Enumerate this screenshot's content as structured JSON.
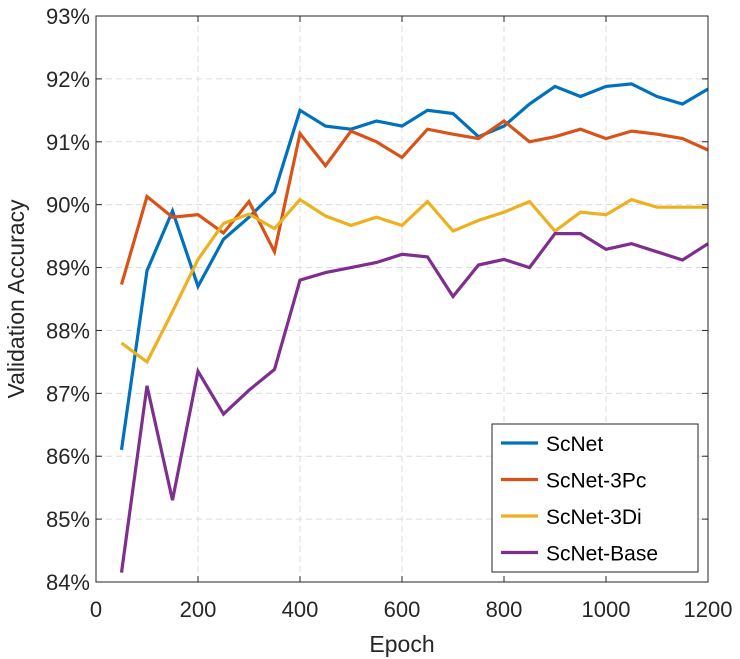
{
  "chart_data": {
    "type": "line",
    "title": "",
    "xlabel": "Epoch",
    "ylabel": "Validation Accuracy",
    "xlim": [
      0,
      1200
    ],
    "ylim": [
      84,
      93
    ],
    "xticks": [
      0,
      200,
      400,
      600,
      800,
      1000,
      1200
    ],
    "xtick_labels": [
      "0",
      "200",
      "400",
      "600",
      "800",
      "1000",
      "1200"
    ],
    "yticks": [
      84,
      85,
      86,
      87,
      88,
      89,
      90,
      91,
      92,
      93
    ],
    "ytick_labels": [
      "84%",
      "85%",
      "86%",
      "87%",
      "88%",
      "89%",
      "90%",
      "91%",
      "92%",
      "93%"
    ],
    "grid": true,
    "legend_position": "bottom-right",
    "x": [
      50,
      100,
      150,
      200,
      250,
      300,
      350,
      400,
      450,
      500,
      550,
      600,
      650,
      700,
      750,
      800,
      850,
      900,
      950,
      1000,
      1050,
      1100,
      1150,
      1200
    ],
    "series": [
      {
        "name": "ScNet",
        "color": "#0072BD",
        "values": [
          86.1,
          88.95,
          89.9,
          88.7,
          89.45,
          89.8,
          90.2,
          91.5,
          91.25,
          91.2,
          91.33,
          91.25,
          91.5,
          91.45,
          91.08,
          91.25,
          91.6,
          91.88,
          91.72,
          91.88,
          91.92,
          91.72,
          91.6,
          91.84
        ]
      },
      {
        "name": "ScNet-3Pc",
        "color": "#D95319",
        "values": [
          88.73,
          90.13,
          89.8,
          89.84,
          89.55,
          90.05,
          89.25,
          91.13,
          90.62,
          91.17,
          91.0,
          90.75,
          91.2,
          91.12,
          91.05,
          91.33,
          91.0,
          91.08,
          91.2,
          91.05,
          91.17,
          91.12,
          91.05,
          90.87
        ]
      },
      {
        "name": "ScNet-3Di",
        "color": "#EDB120",
        "values": [
          87.8,
          87.5,
          88.3,
          89.13,
          89.7,
          89.85,
          89.62,
          90.08,
          89.82,
          89.67,
          89.8,
          89.67,
          90.05,
          89.58,
          89.75,
          89.88,
          90.05,
          89.58,
          89.88,
          89.84,
          90.08,
          89.96,
          89.96,
          89.96
        ]
      },
      {
        "name": "ScNet-Base",
        "color": "#7E2F8E",
        "values": [
          84.15,
          87.12,
          85.3,
          87.35,
          86.67,
          87.05,
          87.38,
          88.8,
          88.92,
          89.0,
          89.08,
          89.21,
          89.17,
          88.54,
          89.04,
          89.13,
          89.0,
          89.54,
          89.54,
          89.29,
          89.38,
          89.25,
          89.12,
          89.38
        ]
      }
    ]
  }
}
